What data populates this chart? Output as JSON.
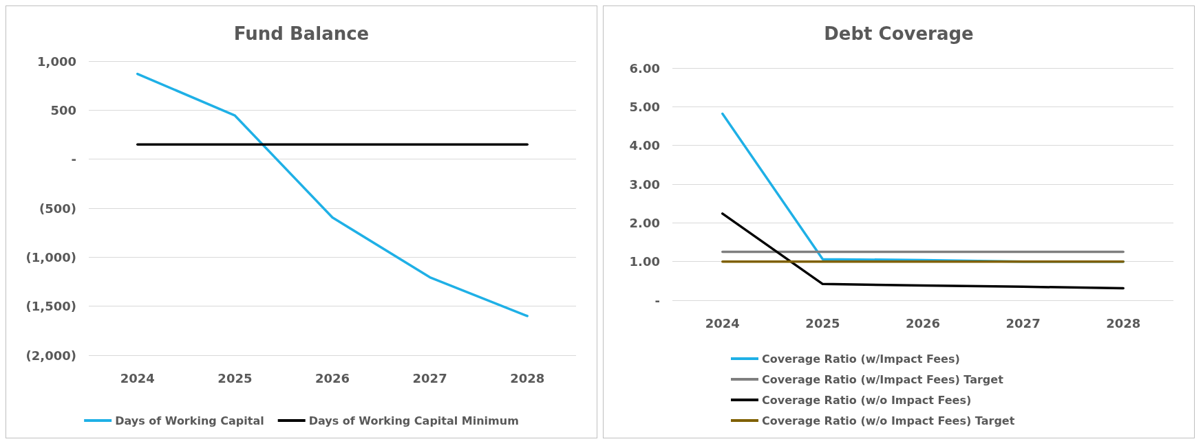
{
  "chart_data": [
    {
      "type": "line",
      "title": "Fund Balance",
      "categories": [
        "2024",
        "2025",
        "2026",
        "2027",
        "2028"
      ],
      "series": [
        {
          "name": "Days of Working Capital",
          "color": "#1fb0e6",
          "values": [
            870,
            445,
            -595,
            -1205,
            -1600
          ]
        },
        {
          "name": "Days of Working Capital Minimum",
          "color": "#000000",
          "values": [
            150,
            150,
            150,
            150,
            150
          ]
        }
      ],
      "ylim": [
        -2000,
        1000
      ],
      "yticks": [
        {
          "value": -2000,
          "label": "(2,000)"
        },
        {
          "value": -1500,
          "label": "(1,500)"
        },
        {
          "value": -1000,
          "label": "(1,000)"
        },
        {
          "value": -500,
          "label": "(500)"
        },
        {
          "value": 0,
          "label": "-"
        },
        {
          "value": 500,
          "label": "500"
        },
        {
          "value": 1000,
          "label": "1,000"
        }
      ],
      "grid": "y",
      "legend": "bottom",
      "marker": "none",
      "line_style": "solid"
    },
    {
      "type": "line",
      "title": "Debt Coverage",
      "categories": [
        "2024",
        "2025",
        "2026",
        "2027",
        "2028"
      ],
      "series": [
        {
          "name": "Coverage Ratio (w/Impact Fees)",
          "color": "#1fb0e6",
          "values": [
            4.82,
            1.06,
            1.04,
            1.0,
            1.0
          ]
        },
        {
          "name": "Coverage Ratio (w/Impact Fees) Target",
          "color": "#7f7f7f",
          "values": [
            1.25,
            1.25,
            1.25,
            1.25,
            1.25
          ]
        },
        {
          "name": "Coverage Ratio (w/o Impact Fees)",
          "color": "#000000",
          "values": [
            2.24,
            0.42,
            0.38,
            0.35,
            0.31
          ]
        },
        {
          "name": "Coverage Ratio (w/o Impact Fees) Target",
          "color": "#7f6000",
          "values": [
            1.0,
            1.0,
            1.0,
            1.0,
            1.0
          ]
        }
      ],
      "ylim": [
        0,
        6
      ],
      "yticks": [
        {
          "value": 0,
          "label": "-"
        },
        {
          "value": 1,
          "label": "1.00"
        },
        {
          "value": 2,
          "label": "2.00"
        },
        {
          "value": 3,
          "label": "3.00"
        },
        {
          "value": 4,
          "label": "4.00"
        },
        {
          "value": 5,
          "label": "5.00"
        },
        {
          "value": 6,
          "label": "6.00"
        }
      ],
      "grid": "y",
      "legend": "bottom",
      "marker": "none",
      "line_style": "solid"
    }
  ]
}
